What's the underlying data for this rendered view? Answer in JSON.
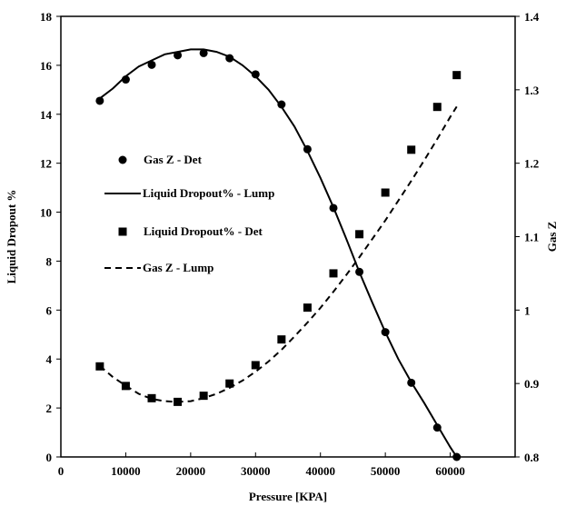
{
  "chart_data": {
    "type": "scatter",
    "xlabel": "Pressure [KPA]",
    "ylabel": "Liquid Dropout %",
    "y2label": "Gas Z",
    "xlim": [
      0,
      70000
    ],
    "ylim": [
      0,
      18
    ],
    "y2lim": [
      0.8,
      1.4
    ],
    "x_ticks": [
      "0",
      "10000",
      "20000",
      "30000",
      "40000",
      "50000",
      "60000"
    ],
    "y_ticks": [
      "0",
      "2",
      "4",
      "6",
      "8",
      "10",
      "12",
      "14",
      "16",
      "18"
    ],
    "y2_ticks": [
      "0.8",
      "0.9",
      "1",
      "1.1",
      "1.2",
      "1.3",
      "1.4"
    ],
    "legend_position": "left",
    "grid": false,
    "series": [
      {
        "name": "Gas Z - Det",
        "kind": "markers",
        "marker": "circle",
        "axis": "right",
        "x": [
          6000,
          10000,
          14000,
          18000,
          22000,
          26000,
          30000,
          34000,
          38000,
          42000,
          46000,
          50000,
          54000,
          58000,
          61000
        ],
        "y": [
          1.285,
          1.314,
          1.334,
          1.347,
          1.35,
          1.343,
          1.321,
          1.28,
          1.219,
          1.139,
          1.052,
          0.97,
          0.901,
          0.84,
          0.8
        ]
      },
      {
        "name": "Liquid Dropout% - Lump",
        "kind": "line",
        "dash": "solid",
        "axis": "left",
        "x": [
          6000,
          8000,
          10000,
          12000,
          14000,
          16000,
          18000,
          20000,
          22000,
          24000,
          26000,
          28000,
          30000,
          32000,
          34000,
          36000,
          38000,
          40000,
          42000,
          44000,
          46000,
          48000,
          50000,
          52000,
          54000,
          56000,
          58000,
          60000,
          61000
        ],
        "y": [
          14.65,
          15.05,
          15.55,
          15.95,
          16.2,
          16.45,
          16.55,
          16.65,
          16.65,
          16.55,
          16.35,
          16.0,
          15.55,
          15.0,
          14.3,
          13.5,
          12.5,
          11.4,
          10.2,
          8.9,
          7.55,
          6.3,
          5.1,
          4.0,
          3.05,
          2.2,
          1.3,
          0.4,
          0.0
        ]
      },
      {
        "name": "Liquid Dropout% - Det",
        "kind": "markers",
        "marker": "square",
        "axis": "left",
        "x": [
          6000,
          10000,
          14000,
          18000,
          22000,
          26000,
          30000,
          34000,
          38000,
          42000,
          46000,
          50000,
          54000,
          58000,
          61000
        ],
        "y": [
          3.7,
          2.9,
          2.4,
          2.25,
          2.5,
          3.0,
          3.75,
          4.8,
          6.1,
          7.5,
          9.1,
          10.8,
          12.55,
          14.3,
          15.6
        ]
      },
      {
        "name": "Gas Z - Lump",
        "kind": "line",
        "dash": "dashed",
        "axis": "right",
        "x": [
          6000,
          8000,
          10000,
          12000,
          14000,
          16000,
          18000,
          20000,
          22000,
          24000,
          26000,
          28000,
          30000,
          32000,
          34000,
          36000,
          38000,
          40000,
          42000,
          44000,
          46000,
          48000,
          50000,
          52000,
          54000,
          56000,
          58000,
          60000,
          61000
        ],
        "y": [
          0.924,
          0.909,
          0.897,
          0.886,
          0.879,
          0.876,
          0.875,
          0.876,
          0.88,
          0.886,
          0.894,
          0.904,
          0.916,
          0.93,
          0.946,
          0.964,
          0.983,
          1.003,
          1.025,
          1.048,
          1.072,
          1.097,
          1.122,
          1.149,
          1.176,
          1.204,
          1.233,
          1.263,
          1.277
        ]
      }
    ]
  }
}
